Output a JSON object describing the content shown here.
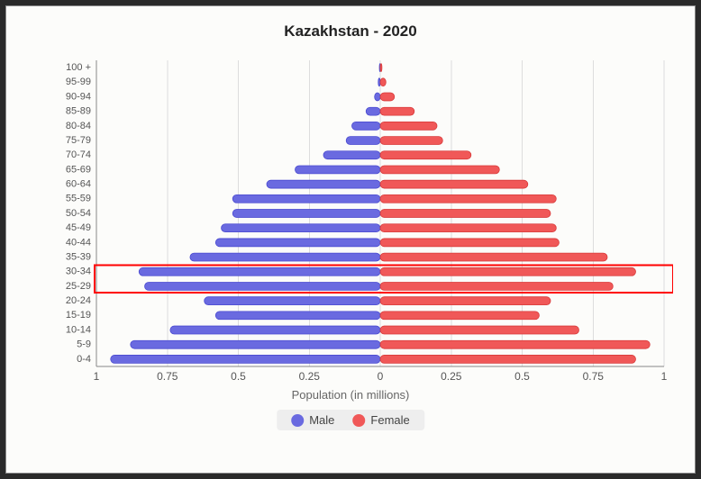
{
  "title": "Kazakhstan - 2020",
  "title_fontsize": 17,
  "xlabel": "Population (in millions)",
  "xlabel_fontsize": 13,
  "background_color": "#fcfcfa",
  "outer_background": "#2a2a2a",
  "chart": {
    "type": "population-pyramid",
    "max_value": 1.0,
    "xtick_step": 0.25,
    "xticks": [
      "1",
      "0.75",
      "0.5",
      "0.25",
      "0",
      "0.25",
      "0.5",
      "0.75",
      "1"
    ],
    "grid_color": "#dddddd",
    "axis_color": "#888888",
    "male_color": "#6a6ae0",
    "male_border": "#4a4ad0",
    "female_color": "#f05858",
    "female_border": "#d83a3a",
    "bar_height_ratio": 0.55,
    "age_groups": [
      "0-4",
      "5-9",
      "10-14",
      "15-19",
      "20-24",
      "25-29",
      "30-34",
      "35-39",
      "40-44",
      "45-49",
      "50-54",
      "55-59",
      "60-64",
      "65-69",
      "70-74",
      "75-79",
      "80-84",
      "85-89",
      "90-94",
      "95-99",
      "100 +"
    ],
    "male": [
      0.95,
      0.88,
      0.74,
      0.58,
      0.62,
      0.83,
      0.85,
      0.67,
      0.58,
      0.56,
      0.52,
      0.52,
      0.4,
      0.3,
      0.2,
      0.12,
      0.1,
      0.05,
      0.02,
      0.007,
      0.003
    ],
    "female": [
      0.9,
      0.95,
      0.7,
      0.56,
      0.6,
      0.82,
      0.9,
      0.8,
      0.63,
      0.62,
      0.6,
      0.62,
      0.52,
      0.42,
      0.32,
      0.22,
      0.2,
      0.12,
      0.05,
      0.02,
      0.006
    ],
    "highlight_rows": [
      6,
      5
    ],
    "highlight_color": "#ff0000"
  },
  "legend": {
    "male_label": "Male",
    "female_label": "Female",
    "bg_color": "#eeeeee"
  }
}
